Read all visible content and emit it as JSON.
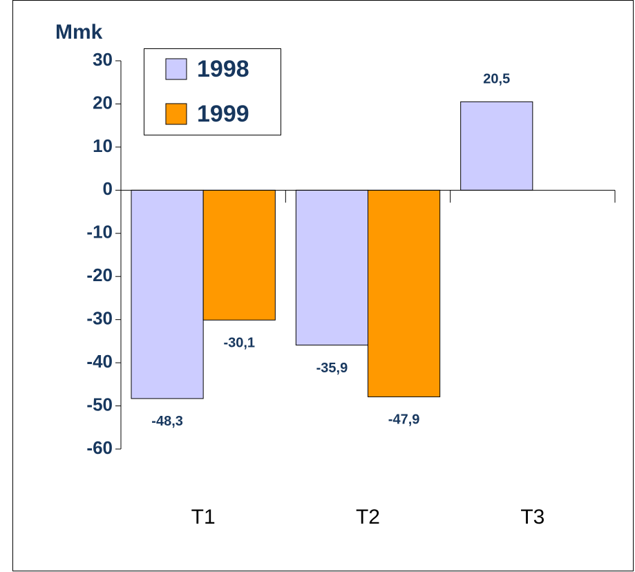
{
  "chart_data": {
    "type": "bar",
    "y_label": "Mmk",
    "categories": [
      "T1",
      "T2",
      "T3"
    ],
    "series": [
      {
        "name": "1998",
        "color": "#ccccff",
        "values": [
          -48.3,
          -35.9,
          20.5
        ],
        "value_labels": [
          "-48,3",
          "-35,9",
          "20,5"
        ]
      },
      {
        "name": "1999",
        "color": "#ff9900",
        "values": [
          -30.1,
          -47.9,
          null
        ],
        "value_labels": [
          "-30,1",
          "-47,9",
          null
        ]
      }
    ],
    "ylim": [
      -60,
      30
    ],
    "yticks": [
      -60,
      -50,
      -40,
      -30,
      -20,
      -10,
      0,
      10,
      20,
      30
    ]
  }
}
